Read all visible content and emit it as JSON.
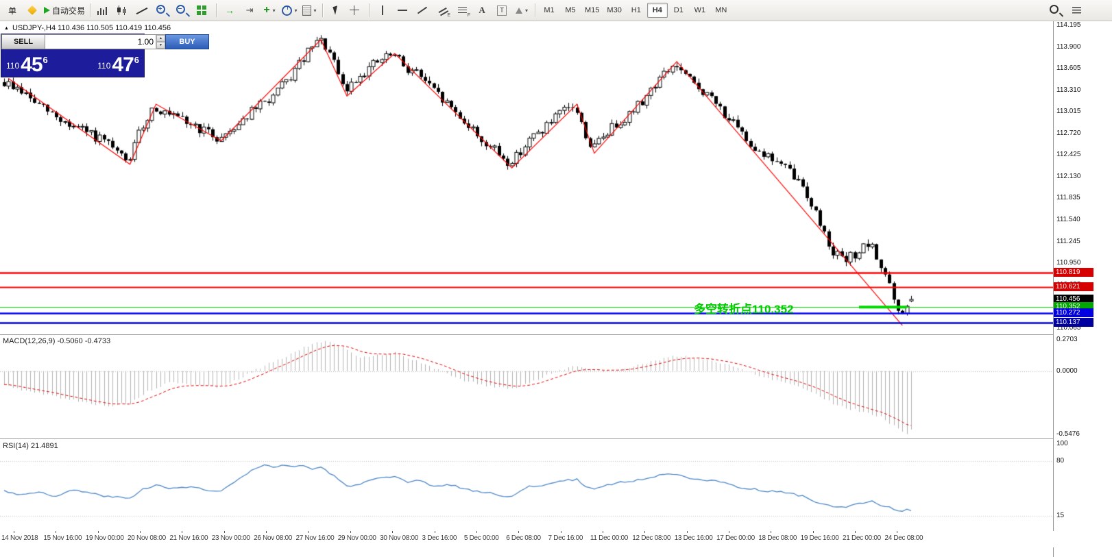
{
  "chart_header": {
    "marker": "▲",
    "text": "USDJPY-,H4  110.436 110.505 110.419 110.456"
  },
  "toolbar": {
    "caret_glyph": "▾",
    "groups": [
      {
        "name": "trade-group",
        "items": [
          {
            "name": "new-order-button",
            "label": "单"
          },
          {
            "name": "metatrader-icon"
          },
          {
            "name": "autotrading-button",
            "label": "自动交易"
          }
        ]
      },
      {
        "name": "chart-type-group",
        "items": [
          {
            "name": "bar-chart-icon"
          },
          {
            "name": "candlestick-chart-icon"
          },
          {
            "name": "line-chart-icon"
          },
          {
            "name": "zoom-in-icon"
          },
          {
            "name": "zoom-out-icon"
          },
          {
            "name": "tile-windows-icon"
          }
        ]
      },
      {
        "name": "chart-tools-group",
        "items": [
          {
            "name": "auto-scroll-icon"
          },
          {
            "name": "chart-shift-icon"
          },
          {
            "name": "indicators-icon",
            "caret": true
          },
          {
            "name": "periods-icon",
            "caret": true
          },
          {
            "name": "templates-icon",
            "caret": true
          }
        ]
      },
      {
        "name": "cursor-group",
        "items": [
          {
            "name": "cursor-icon"
          },
          {
            "name": "crosshair-icon"
          }
        ]
      },
      {
        "name": "objects-group",
        "items": [
          {
            "name": "vertical-line-icon"
          },
          {
            "name": "horizontal-line-icon"
          },
          {
            "name": "trendline-icon"
          },
          {
            "name": "equidistant-channel-icon"
          },
          {
            "name": "fibonacci-icon"
          },
          {
            "name": "text-icon"
          },
          {
            "name": "label-icon"
          },
          {
            "name": "shapes-icon",
            "caret": true
          }
        ]
      }
    ],
    "timeframes": [
      "M1",
      "M5",
      "M15",
      "M30",
      "H1",
      "H4",
      "D1",
      "W1",
      "MN"
    ],
    "active_timeframe": "H4",
    "right_icons": [
      {
        "name": "search-icon"
      },
      {
        "name": "toolbar-menu-icon"
      }
    ]
  },
  "trade_panel": {
    "sell_label": "SELL",
    "buy_label": "BUY",
    "volume": "1.00",
    "sell_price": {
      "prefix": "110",
      "big": "45",
      "sup": "6"
    },
    "buy_price": {
      "prefix": "110",
      "big": "47",
      "sup": "6"
    }
  },
  "chart_data": [
    {
      "type": "candlestick",
      "symbol": "USDJPY-",
      "timeframe": "H4",
      "ohlc": {
        "open": 110.436,
        "high": 110.505,
        "low": 110.419,
        "close": 110.456
      },
      "last_candle": [
        110.436,
        110.505,
        110.419,
        110.456
      ],
      "candle_count": 210,
      "noise_seed": 9,
      "body_noise": 0.14,
      "wick_noise": 0.06,
      "y_axis": {
        "min": 109.98,
        "max": 114.26,
        "ticks": [
          "114.195",
          "113.900",
          "113.605",
          "113.310",
          "113.015",
          "112.720",
          "112.425",
          "112.130",
          "111.835",
          "111.540",
          "111.245",
          "110.950",
          "110.655",
          "110.360",
          "110.065"
        ]
      },
      "x_axis": {
        "labels": [
          "14 Nov 2018",
          "15 Nov 16:00",
          "19 Nov 00:00",
          "20 Nov 08:00",
          "21 Nov 16:00",
          "23 Nov 00:00",
          "26 Nov 08:00",
          "27 Nov 16:00",
          "29 Nov 00:00",
          "30 Nov 08:00",
          "3 Dec 16:00",
          "5 Dec 00:00",
          "6 Dec 08:00",
          "7 Dec 16:00",
          "11 Dec 00:00",
          "12 Dec 08:00",
          "13 Dec 16:00",
          "17 Dec 00:00",
          "18 Dec 08:00",
          "19 Dec 16:00",
          "21 Dec 00:00",
          "24 Dec 08:00"
        ]
      },
      "price_path": [
        [
          0,
          113.42
        ],
        [
          4,
          113.32
        ],
        [
          8,
          113.12
        ],
        [
          12,
          112.96
        ],
        [
          16,
          112.82
        ],
        [
          20,
          112.72
        ],
        [
          24,
          112.58
        ],
        [
          29,
          112.32
        ],
        [
          32,
          112.78
        ],
        [
          35,
          113.1
        ],
        [
          38,
          112.96
        ],
        [
          43,
          112.86
        ],
        [
          47,
          112.74
        ],
        [
          50,
          112.64
        ],
        [
          54,
          112.84
        ],
        [
          58,
          113.04
        ],
        [
          62,
          113.2
        ],
        [
          66,
          113.45
        ],
        [
          70,
          113.78
        ],
        [
          73,
          113.99
        ],
        [
          75,
          113.88
        ],
        [
          79,
          113.28
        ],
        [
          82,
          113.5
        ],
        [
          85,
          113.64
        ],
        [
          88,
          113.74
        ],
        [
          90,
          113.8
        ],
        [
          93,
          113.62
        ],
        [
          96,
          113.54
        ],
        [
          99,
          113.32
        ],
        [
          103,
          113.1
        ],
        [
          107,
          112.86
        ],
        [
          111,
          112.6
        ],
        [
          114,
          112.46
        ],
        [
          117,
          112.3
        ],
        [
          121,
          112.6
        ],
        [
          125,
          112.8
        ],
        [
          129,
          113.0
        ],
        [
          132,
          113.1
        ],
        [
          134,
          112.76
        ],
        [
          136,
          112.5
        ],
        [
          139,
          112.72
        ],
        [
          142,
          112.88
        ],
        [
          145,
          113.0
        ],
        [
          148,
          113.2
        ],
        [
          151,
          113.44
        ],
        [
          155,
          113.66
        ],
        [
          158,
          113.46
        ],
        [
          161,
          113.32
        ],
        [
          164,
          113.16
        ],
        [
          167,
          112.96
        ],
        [
          170,
          112.72
        ],
        [
          173,
          112.56
        ],
        [
          176,
          112.42
        ],
        [
          179,
          112.32
        ],
        [
          182,
          112.16
        ],
        [
          185,
          111.96
        ],
        [
          188,
          111.56
        ],
        [
          191,
          111.16
        ],
        [
          194,
          110.96
        ],
        [
          197,
          111.1
        ],
        [
          200,
          111.2
        ],
        [
          202,
          110.96
        ],
        [
          204,
          110.76
        ],
        [
          206,
          110.32
        ],
        [
          207,
          110.16
        ],
        [
          208,
          110.36
        ],
        [
          209,
          110.44
        ]
      ],
      "zigzag": [
        [
          1,
          113.47
        ],
        [
          29,
          112.3
        ],
        [
          35,
          113.12
        ],
        [
          50,
          112.62
        ],
        [
          73,
          114.0
        ],
        [
          79,
          113.23
        ],
        [
          90,
          113.81
        ],
        [
          117,
          112.25
        ],
        [
          132,
          113.12
        ],
        [
          136,
          112.45
        ],
        [
          155,
          113.7
        ],
        [
          207,
          110.1
        ]
      ],
      "zigzag_color": "#ff0000",
      "levels": [
        {
          "label": "110.819",
          "price": 110.819,
          "tag_color": "#d60000",
          "line_color": "#ff0000",
          "line_width": 2.5
        },
        {
          "label": "110.621",
          "price": 110.621,
          "tag_color": "#d60000",
          "line_color": "#ff0000",
          "line_width": 2
        },
        {
          "label": "110.456",
          "price": 110.456,
          "tag_color": "#000000",
          "line_color": null,
          "line_width": 0
        },
        {
          "label": "110.352",
          "price": 110.352,
          "tag_color": "#00a800",
          "line_color": "#00d800",
          "line_width": 1.2
        },
        {
          "label": "110.272",
          "price": 110.272,
          "tag_color": "#0000e0",
          "line_color": "#0000ff",
          "line_width": 2.5
        },
        {
          "label": "110.137",
          "price": 110.137,
          "tag_color": "#0000a0",
          "line_color": "#0000c0",
          "line_width": 2.5
        }
      ],
      "turn_segment": {
        "price": 110.352,
        "from_idx": 197,
        "to_idx": 208,
        "color": "#00d800",
        "width": 4
      },
      "annotation": {
        "text": "多空转折点110.352",
        "color": "#00cc00"
      }
    },
    {
      "type": "macd",
      "params": "MACD(12,26,9)",
      "header": "MACD(12,26,9) -0.5060 -0.4733",
      "main_value": -0.506,
      "signal_value": -0.4733,
      "signal_period": 9,
      "histogram_color": "#b4b4b4",
      "signal_color": "#e00000",
      "noise_seed": 5,
      "noise": 0.02,
      "y_axis": {
        "max": 0.2703,
        "min": -0.5476,
        "ticks": [
          {
            "label": "0.2703",
            "value": 0.2703
          },
          {
            "label": "0.0000",
            "value": 0
          },
          {
            "label": "-0.5476",
            "value": -0.5476
          }
        ]
      },
      "path": [
        [
          0,
          -0.12
        ],
        [
          6,
          -0.18
        ],
        [
          12,
          -0.22
        ],
        [
          18,
          -0.27
        ],
        [
          24,
          -0.3
        ],
        [
          29,
          -0.28
        ],
        [
          33,
          -0.18
        ],
        [
          38,
          -0.1
        ],
        [
          44,
          -0.12
        ],
        [
          50,
          -0.14
        ],
        [
          55,
          -0.05
        ],
        [
          60,
          0.05
        ],
        [
          65,
          0.13
        ],
        [
          70,
          0.22
        ],
        [
          74,
          0.26
        ],
        [
          78,
          0.2
        ],
        [
          82,
          0.12
        ],
        [
          86,
          0.14
        ],
        [
          90,
          0.16
        ],
        [
          94,
          0.1
        ],
        [
          98,
          0.04
        ],
        [
          102,
          -0.02
        ],
        [
          106,
          -0.08
        ],
        [
          110,
          -0.12
        ],
        [
          114,
          -0.14
        ],
        [
          117,
          -0.15
        ],
        [
          121,
          -0.1
        ],
        [
          125,
          -0.04
        ],
        [
          129,
          0.02
        ],
        [
          132,
          0.05
        ],
        [
          135,
          0.02
        ],
        [
          138,
          -0.01
        ],
        [
          142,
          0.02
        ],
        [
          146,
          0.05
        ],
        [
          150,
          0.09
        ],
        [
          155,
          0.13
        ],
        [
          159,
          0.12
        ],
        [
          163,
          0.09
        ],
        [
          167,
          0.05
        ],
        [
          171,
          0.0
        ],
        [
          175,
          -0.05
        ],
        [
          179,
          -0.09
        ],
        [
          183,
          -0.13
        ],
        [
          187,
          -0.2
        ],
        [
          191,
          -0.28
        ],
        [
          195,
          -0.33
        ],
        [
          199,
          -0.36
        ],
        [
          202,
          -0.4
        ],
        [
          205,
          -0.47
        ],
        [
          207,
          -0.53
        ],
        [
          208,
          -0.545
        ],
        [
          209,
          -0.506
        ]
      ]
    },
    {
      "type": "rsi",
      "params": "RSI(14)",
      "header": "RSI(14) 21.4891",
      "value": 21.4891,
      "line_color": "#4c86c6",
      "noise_seed": 3,
      "noise": 2.2,
      "y_axis": {
        "max": 100,
        "min": 0,
        "levels": [
          80,
          15
        ],
        "ticks": [
          {
            "label": "100",
            "value": 100
          },
          {
            "label": "80",
            "value": 80
          },
          {
            "label": "15",
            "value": 15
          }
        ]
      },
      "path": [
        [
          0,
          45
        ],
        [
          4,
          40
        ],
        [
          8,
          44
        ],
        [
          12,
          38
        ],
        [
          16,
          46
        ],
        [
          20,
          42
        ],
        [
          24,
          38
        ],
        [
          29,
          36
        ],
        [
          32,
          47
        ],
        [
          35,
          52
        ],
        [
          38,
          47
        ],
        [
          43,
          50
        ],
        [
          47,
          45
        ],
        [
          50,
          44
        ],
        [
          53,
          55
        ],
        [
          57,
          68
        ],
        [
          60,
          75
        ],
        [
          62,
          72
        ],
        [
          64,
          76
        ],
        [
          66,
          73
        ],
        [
          69,
          75
        ],
        [
          71,
          70
        ],
        [
          73,
          73
        ],
        [
          76,
          62
        ],
        [
          79,
          50
        ],
        [
          82,
          53
        ],
        [
          85,
          58
        ],
        [
          88,
          60
        ],
        [
          90,
          61
        ],
        [
          93,
          55
        ],
        [
          96,
          57
        ],
        [
          99,
          50
        ],
        [
          103,
          52
        ],
        [
          107,
          46
        ],
        [
          111,
          43
        ],
        [
          114,
          40
        ],
        [
          117,
          38
        ],
        [
          121,
          50
        ],
        [
          125,
          52
        ],
        [
          129,
          57
        ],
        [
          132,
          58
        ],
        [
          134,
          50
        ],
        [
          136,
          47
        ],
        [
          139,
          52
        ],
        [
          142,
          55
        ],
        [
          145,
          56
        ],
        [
          148,
          60
        ],
        [
          151,
          63
        ],
        [
          155,
          65
        ],
        [
          158,
          60
        ],
        [
          161,
          58
        ],
        [
          164,
          57
        ],
        [
          167,
          52
        ],
        [
          170,
          48
        ],
        [
          173,
          47
        ],
        [
          176,
          44
        ],
        [
          179,
          44
        ],
        [
          182,
          41
        ],
        [
          185,
          37
        ],
        [
          188,
          30
        ],
        [
          191,
          26
        ],
        [
          194,
          25
        ],
        [
          197,
          30
        ],
        [
          200,
          32
        ],
        [
          202,
          28
        ],
        [
          204,
          26
        ],
        [
          206,
          21
        ],
        [
          207,
          20
        ],
        [
          208,
          24
        ],
        [
          209,
          21.4891
        ]
      ]
    }
  ]
}
